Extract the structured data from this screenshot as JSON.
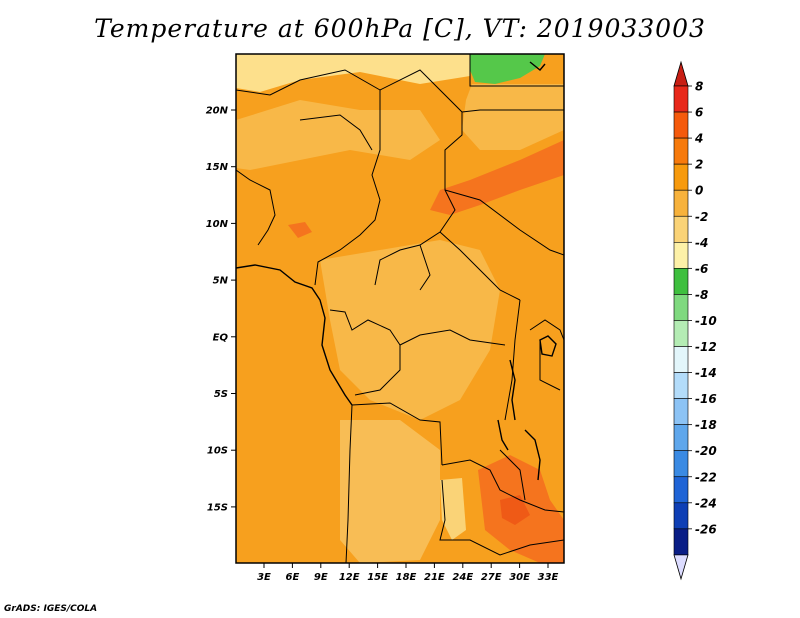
{
  "title": "Temperature at 600hPa [C], VT: 2019033003",
  "footer": "GrADS: IGES/COLA",
  "map": {
    "lon_ticks": [
      "3E",
      "6E",
      "9E",
      "12E",
      "15E",
      "18E",
      "21E",
      "24E",
      "27E",
      "30E",
      "33E"
    ],
    "lat_ticks": [
      "20N",
      "15N",
      "10N",
      "5N",
      "EQ",
      "5S",
      "10S",
      "15S"
    ]
  },
  "colorbar": {
    "levels": [
      "8",
      "6",
      "4",
      "2",
      "0",
      "-2",
      "-4",
      "-6",
      "-8",
      "-10",
      "-12",
      "-14",
      "-16",
      "-18",
      "-20",
      "-22",
      "-24",
      "-26"
    ],
    "colors": [
      "#e8281a",
      "#f55a0c",
      "#f77a0c",
      "#f79a0d",
      "#f7b23c",
      "#fad377",
      "#fdf1a8",
      "#3fbf3f",
      "#7fd97f",
      "#b4ecb4",
      "#e3f6fb",
      "#b3dcfa",
      "#8cc3f5",
      "#5fa7ec",
      "#3a8ae3",
      "#1f64d6",
      "#0e3fb5",
      "#0a1e86"
    ],
    "top_triangle_color": "#c81e14",
    "bottom_triangle_color": "#dcdcff"
  }
}
